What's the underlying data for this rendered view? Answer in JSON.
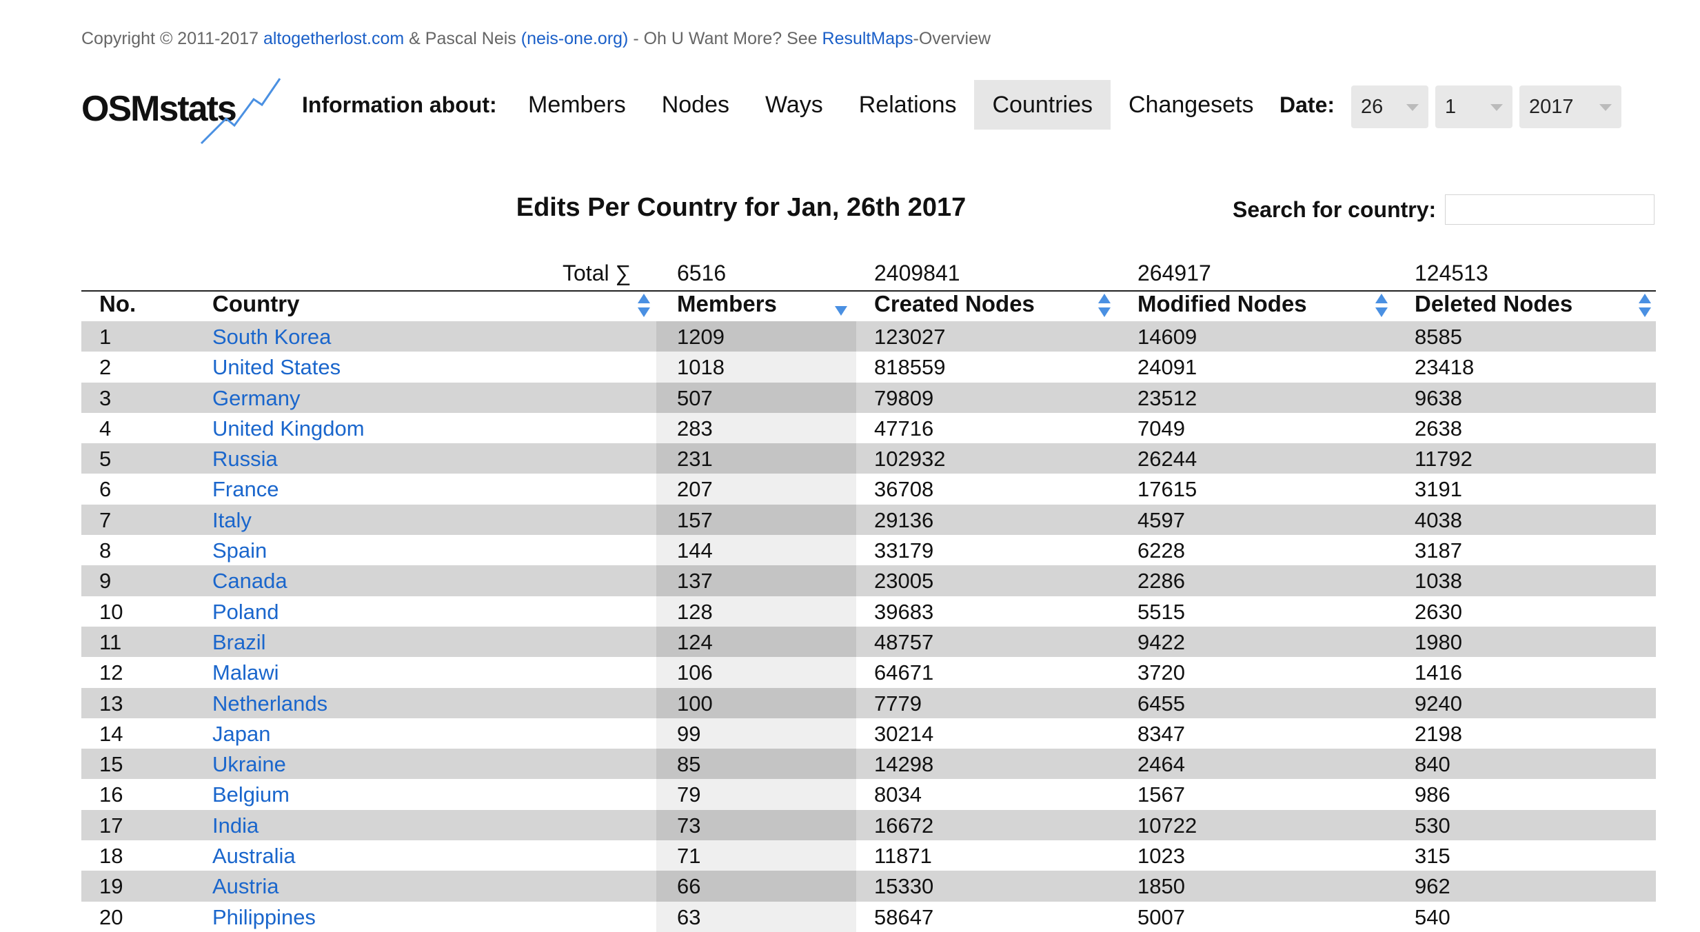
{
  "copyright": {
    "prefix": "Copyright © 2011-2017 ",
    "link1": "altogetherlost.com",
    "mid1": " & Pascal Neis ",
    "link2": "(neis-one.org)",
    "mid2": " - Oh U Want More? See ",
    "link3": "ResultMaps",
    "suffix": "-Overview"
  },
  "logo_text": "OSMstats",
  "info_label": "Information about:",
  "nav": [
    "Members",
    "Nodes",
    "Ways",
    "Relations",
    "Countries",
    "Changesets"
  ],
  "nav_active": "Countries",
  "date": {
    "label": "Date:",
    "day": "26",
    "month": "1",
    "year": "2017"
  },
  "title": "Edits Per Country for Jan, 26th 2017",
  "search_label": "Search for country:",
  "totals": {
    "label": "Total ∑",
    "members": "6516",
    "created": "2409841",
    "modified": "264917",
    "deleted": "124513"
  },
  "headers": {
    "no": "No.",
    "country": "Country",
    "members": "Members",
    "created": "Created Nodes",
    "modified": "Modified Nodes",
    "deleted": "Deleted Nodes"
  },
  "rows": [
    {
      "no": "1",
      "country": "South Korea",
      "members": "1209",
      "created": "123027",
      "modified": "14609",
      "deleted": "8585"
    },
    {
      "no": "2",
      "country": "United States",
      "members": "1018",
      "created": "818559",
      "modified": "24091",
      "deleted": "23418"
    },
    {
      "no": "3",
      "country": "Germany",
      "members": "507",
      "created": "79809",
      "modified": "23512",
      "deleted": "9638"
    },
    {
      "no": "4",
      "country": "United Kingdom",
      "members": "283",
      "created": "47716",
      "modified": "7049",
      "deleted": "2638"
    },
    {
      "no": "5",
      "country": "Russia",
      "members": "231",
      "created": "102932",
      "modified": "26244",
      "deleted": "11792"
    },
    {
      "no": "6",
      "country": "France",
      "members": "207",
      "created": "36708",
      "modified": "17615",
      "deleted": "3191"
    },
    {
      "no": "7",
      "country": "Italy",
      "members": "157",
      "created": "29136",
      "modified": "4597",
      "deleted": "4038"
    },
    {
      "no": "8",
      "country": "Spain",
      "members": "144",
      "created": "33179",
      "modified": "6228",
      "deleted": "3187"
    },
    {
      "no": "9",
      "country": "Canada",
      "members": "137",
      "created": "23005",
      "modified": "2286",
      "deleted": "1038"
    },
    {
      "no": "10",
      "country": "Poland",
      "members": "128",
      "created": "39683",
      "modified": "5515",
      "deleted": "2630"
    },
    {
      "no": "11",
      "country": "Brazil",
      "members": "124",
      "created": "48757",
      "modified": "9422",
      "deleted": "1980"
    },
    {
      "no": "12",
      "country": "Malawi",
      "members": "106",
      "created": "64671",
      "modified": "3720",
      "deleted": "1416"
    },
    {
      "no": "13",
      "country": "Netherlands",
      "members": "100",
      "created": "7779",
      "modified": "6455",
      "deleted": "9240"
    },
    {
      "no": "14",
      "country": "Japan",
      "members": "99",
      "created": "30214",
      "modified": "8347",
      "deleted": "2198"
    },
    {
      "no": "15",
      "country": "Ukraine",
      "members": "85",
      "created": "14298",
      "modified": "2464",
      "deleted": "840"
    },
    {
      "no": "16",
      "country": "Belgium",
      "members": "79",
      "created": "8034",
      "modified": "1567",
      "deleted": "986"
    },
    {
      "no": "17",
      "country": "India",
      "members": "73",
      "created": "16672",
      "modified": "10722",
      "deleted": "530"
    },
    {
      "no": "18",
      "country": "Australia",
      "members": "71",
      "created": "11871",
      "modified": "1023",
      "deleted": "315"
    },
    {
      "no": "19",
      "country": "Austria",
      "members": "66",
      "created": "15330",
      "modified": "1850",
      "deleted": "962"
    },
    {
      "no": "20",
      "country": "Philippines",
      "members": "63",
      "created": "58647",
      "modified": "5007",
      "deleted": "540"
    }
  ],
  "colors": {
    "link": "#1a66cc",
    "sort_arrow": "#4a90e2",
    "row_shade": "#d5d5d5",
    "active_tab": "#e6e6e6"
  }
}
